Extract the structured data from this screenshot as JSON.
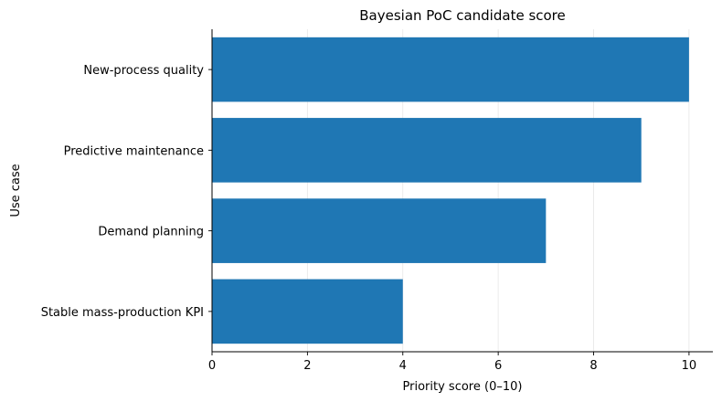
{
  "chart_data": {
    "type": "bar",
    "orientation": "horizontal",
    "title": "Bayesian PoC candidate score",
    "xlabel": "Priority score (0–10)",
    "ylabel": "Use case",
    "categories": [
      "New-process quality",
      "Predictive maintenance",
      "Demand planning",
      "Stable mass-production KPI"
    ],
    "values": [
      10,
      9,
      7,
      4
    ],
    "xlim": [
      0,
      10.5
    ],
    "xticks": [
      "0",
      "2",
      "4",
      "6",
      "8",
      "10"
    ],
    "grid": "vertical",
    "legend": "none",
    "colors": {
      "bar": "#1f77b4",
      "grid": "#e6e6e6",
      "axis": "#000000"
    }
  }
}
